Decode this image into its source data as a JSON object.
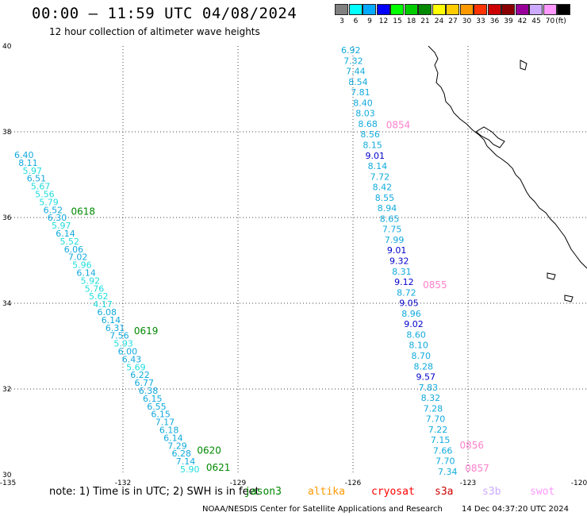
{
  "header": {
    "title": "00:00 — 11:59 UTC 04/08/2024",
    "subtitle": "12 hour collection of altimeter wave heights"
  },
  "legend": {
    "unit": "(ft)",
    "bins": [
      {
        "label": "3",
        "color": "#808080"
      },
      {
        "label": "6",
        "color": "#00ffff"
      },
      {
        "label": "9",
        "color": "#00aaff"
      },
      {
        "label": "12",
        "color": "#0000ff"
      },
      {
        "label": "15",
        "color": "#00ff00"
      },
      {
        "label": "18",
        "color": "#00cc00"
      },
      {
        "label": "21",
        "color": "#008800"
      },
      {
        "label": "24",
        "color": "#ffff00"
      },
      {
        "label": "27",
        "color": "#ffcc00"
      },
      {
        "label": "30",
        "color": "#ff9900"
      },
      {
        "label": "33",
        "color": "#ff3300"
      },
      {
        "label": "36",
        "color": "#cc0000"
      },
      {
        "label": "39",
        "color": "#880000"
      },
      {
        "label": "42",
        "color": "#990099"
      },
      {
        "label": "45",
        "color": "#ccaaff"
      },
      {
        "label": "70",
        "color": "#ff99ff"
      },
      {
        "label": "",
        "color": "#000000"
      }
    ]
  },
  "axes": {
    "lon_ticks": [
      "-135",
      "-132",
      "-129",
      "-126",
      "-123",
      "-120"
    ],
    "lat_ticks": [
      "40",
      "38",
      "36",
      "34",
      "32",
      "30"
    ]
  },
  "tracks": [
    {
      "times": [
        {
          "label": "0618",
          "color": "#008800"
        },
        {
          "label": "0619",
          "color": "#008800"
        },
        {
          "label": "0620",
          "color": "#008800"
        },
        {
          "label": "0621",
          "color": "#008800"
        }
      ],
      "values": [
        "6.40",
        "8.11",
        "5.97",
        "6.51",
        "5.67",
        "5.56",
        "5.79",
        "6.52",
        "6.30",
        "5.97",
        "6.14",
        "5.52",
        "6.06",
        "7.02",
        "5.96",
        "6.14",
        "5.92",
        "5.76",
        "5.62",
        "4.17",
        "6.08",
        "6.14",
        "6.31",
        "7.56",
        "5.93",
        "6.00",
        "6.43",
        "5.69",
        "6.22",
        "6.77",
        "6.38",
        "6.15",
        "6.55",
        "6.15",
        "7.17",
        "6.18",
        "6.14",
        "7.29",
        "6.28",
        "7.14",
        "5.90"
      ]
    },
    {
      "times": [
        {
          "label": "0854",
          "color": "#ff80cc"
        },
        {
          "label": "0855",
          "color": "#ff80cc"
        },
        {
          "label": "0856",
          "color": "#ff80cc"
        },
        {
          "label": "0857",
          "color": "#ff80cc"
        }
      ],
      "values": [
        "6.92",
        "7.32",
        "7.44",
        "8.54",
        "7.81",
        "8.40",
        "8.03",
        "8.68",
        "8.56",
        "8.15",
        "9.01",
        "8.14",
        "7.72",
        "8.42",
        "8.55",
        "8.94",
        "8.65",
        "7.75",
        "7.99",
        "9.01",
        "9.32",
        "8.31",
        "9.12",
        "8.72",
        "9.05",
        "8.96",
        "9.02",
        "8.60",
        "8.10",
        "8.70",
        "8.28",
        "9.57",
        "7.83",
        "8.32",
        "7.28",
        "7.70",
        "7.22",
        "7.15",
        "7.66",
        "7.70",
        "7.34"
      ]
    }
  ],
  "footer": {
    "note": "note: 1) Time is in UTC; 2) SWH is in feet",
    "satellites": [
      {
        "name": "jason3",
        "color": "#008800"
      },
      {
        "name": "altika",
        "color": "#ff9900"
      },
      {
        "name": "cryosat",
        "color": "#ff0000"
      },
      {
        "name": "s3a",
        "color": "#cc0000"
      },
      {
        "name": "s3b",
        "color": "#ccaaff"
      },
      {
        "name": "swot",
        "color": "#ff99ff"
      }
    ],
    "credit": "NOAA/NESDIS Center for Satellite Applications and Research",
    "timestamp": "14 Dec 04:37:20 UTC 2024"
  }
}
